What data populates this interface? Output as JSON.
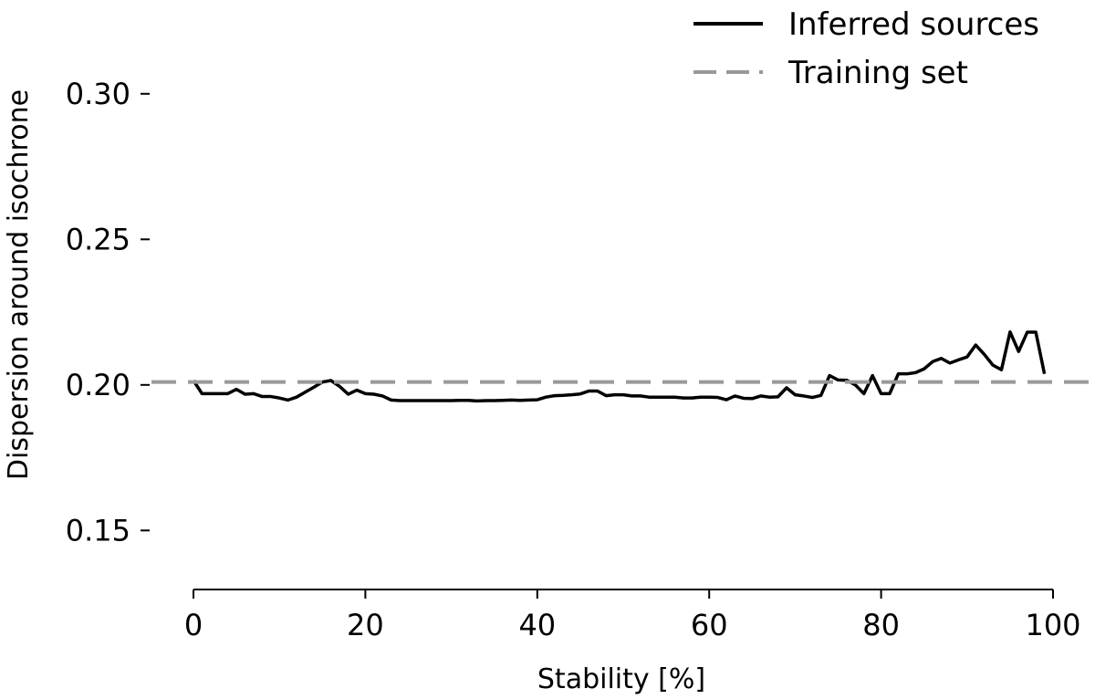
{
  "chart_data": {
    "type": "line",
    "xlabel": "Stability [%]",
    "ylabel": "Dispersion around isochrone",
    "xlim": [
      0,
      100
    ],
    "ylim": [
      0.12,
      0.32
    ],
    "xticks": [
      0,
      20,
      40,
      60,
      80,
      100
    ],
    "xtick_labels": [
      "0",
      "20",
      "40",
      "60",
      "80",
      "100"
    ],
    "yticks": [
      0.15,
      0.2,
      0.25,
      0.3
    ],
    "ytick_labels": [
      "0.15",
      "0.20",
      "0.25",
      "0.30"
    ],
    "grid": false,
    "legend_position": "top-right",
    "series": [
      {
        "name": "Inferred sources",
        "color": "#000000",
        "style": "solid",
        "x": [
          0,
          1,
          2,
          3,
          4,
          5,
          6,
          7,
          8,
          9,
          10,
          11,
          12,
          13,
          14,
          15,
          16,
          17,
          18,
          19,
          20,
          21,
          22,
          23,
          24,
          25,
          26,
          27,
          28,
          29,
          30,
          31,
          32,
          33,
          34,
          35,
          36,
          37,
          38,
          39,
          40,
          41,
          42,
          43,
          44,
          45,
          46,
          47,
          48,
          49,
          50,
          51,
          52,
          53,
          54,
          55,
          56,
          57,
          58,
          59,
          60,
          61,
          62,
          63,
          64,
          65,
          66,
          67,
          68,
          69,
          70,
          71,
          72,
          73,
          74,
          75,
          76,
          77,
          78,
          79,
          80,
          81,
          82,
          83,
          84,
          85,
          86,
          87,
          88,
          89,
          90,
          91,
          92,
          93,
          94,
          95,
          96,
          97,
          98,
          99
        ],
        "y": [
          0.2015,
          0.197,
          0.197,
          0.197,
          0.197,
          0.1985,
          0.1968,
          0.197,
          0.196,
          0.196,
          0.1955,
          0.1948,
          0.1958,
          0.1975,
          0.1992,
          0.201,
          0.2015,
          0.1995,
          0.1968,
          0.1982,
          0.197,
          0.1968,
          0.1962,
          0.1948,
          0.1946,
          0.1946,
          0.1946,
          0.1946,
          0.1946,
          0.1946,
          0.1946,
          0.1947,
          0.1947,
          0.1945,
          0.1946,
          0.1946,
          0.1947,
          0.1948,
          0.1947,
          0.1948,
          0.1949,
          0.1958,
          0.1963,
          0.1964,
          0.1966,
          0.1969,
          0.1979,
          0.1979,
          0.1963,
          0.1966,
          0.1966,
          0.1962,
          0.1962,
          0.1958,
          0.1958,
          0.1958,
          0.1958,
          0.1955,
          0.1955,
          0.1958,
          0.1958,
          0.1957,
          0.1949,
          0.1962,
          0.1954,
          0.1953,
          0.1962,
          0.1958,
          0.1959,
          0.199,
          0.1966,
          0.1962,
          0.1957,
          0.1964,
          0.2032,
          0.2017,
          0.2016,
          0.2,
          0.197,
          0.2032,
          0.197,
          0.197,
          0.2038,
          0.2038,
          0.2042,
          0.2055,
          0.208,
          0.2091,
          0.2075,
          0.2086,
          0.2096,
          0.2137,
          0.2105,
          0.2068,
          0.2052,
          0.2182,
          0.2115,
          0.2181,
          0.2181,
          0.2038
        ]
      },
      {
        "name": "Training set",
        "color": "#999999",
        "style": "dashed",
        "y": 0.201
      }
    ]
  }
}
